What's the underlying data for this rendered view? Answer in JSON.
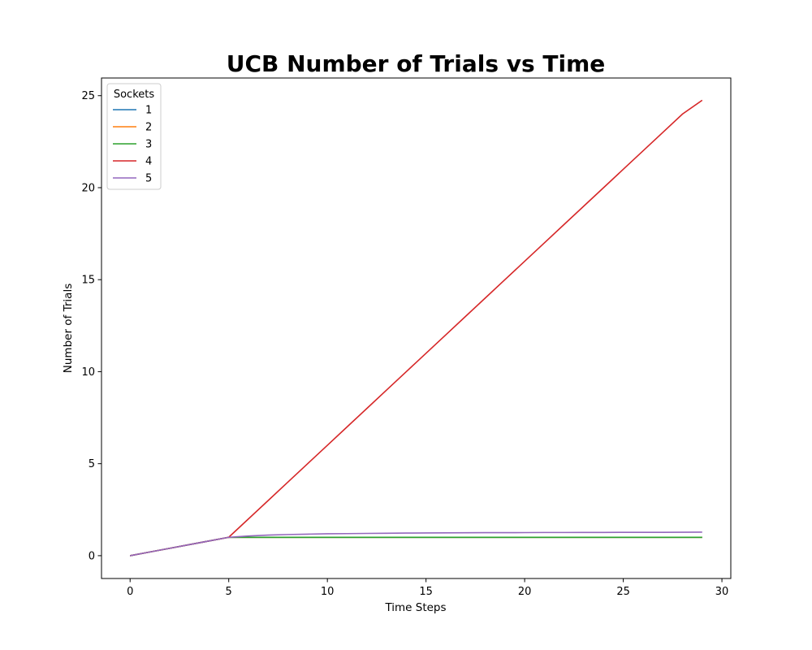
{
  "chart_data": {
    "type": "line",
    "title": "UCB Number of Trials vs Time",
    "xlabel": "Time Steps",
    "ylabel": "Number of Trials",
    "xlim": [
      -1.45,
      30.45
    ],
    "ylim": [
      -1.24,
      25.96
    ],
    "xticks": [
      0,
      5,
      10,
      15,
      20,
      25,
      30
    ],
    "yticks": [
      0,
      5,
      10,
      15,
      20,
      25
    ],
    "grid": false,
    "legend": {
      "title": "Sockets",
      "placement": "top-left"
    },
    "x": [
      0,
      1,
      2,
      3,
      4,
      5,
      6,
      7,
      8,
      9,
      10,
      11,
      12,
      13,
      14,
      15,
      16,
      17,
      18,
      19,
      20,
      21,
      22,
      23,
      24,
      25,
      26,
      27,
      28,
      29
    ],
    "series": [
      {
        "name": "1",
        "color": "#1f77b4",
        "values": [
          0,
          0.2,
          0.4,
          0.6,
          0.8,
          1,
          1,
          1,
          1,
          1,
          1,
          1,
          1,
          1,
          1,
          1,
          1,
          1,
          1,
          1,
          1,
          1,
          1,
          1,
          1,
          1,
          1,
          1,
          1,
          1
        ]
      },
      {
        "name": "2",
        "color": "#ff7f0e",
        "values": [
          0,
          0.2,
          0.4,
          0.6,
          0.8,
          1,
          1,
          1,
          1,
          1,
          1,
          1,
          1,
          1,
          1,
          1,
          1,
          1,
          1,
          1,
          1,
          1,
          1,
          1,
          1,
          1,
          1,
          1,
          1,
          1
        ]
      },
      {
        "name": "3",
        "color": "#2ca02c",
        "values": [
          0,
          0.2,
          0.4,
          0.6,
          0.8,
          1,
          1,
          1,
          1,
          1,
          1,
          1,
          1,
          1,
          1,
          1,
          1,
          1,
          1,
          1,
          1,
          1,
          1,
          1,
          1,
          1,
          1,
          1,
          1,
          1
        ]
      },
      {
        "name": "4",
        "color": "#d62728",
        "values": [
          0,
          0.2,
          0.4,
          0.6,
          0.8,
          1,
          2,
          3,
          4,
          5,
          6,
          7,
          8,
          9,
          10,
          11,
          12,
          13,
          14,
          15,
          16,
          17,
          18,
          19,
          20,
          21,
          22,
          23,
          24,
          24.75
        ]
      },
      {
        "name": "5",
        "color": "#9467bd",
        "values": [
          0,
          0.2,
          0.4,
          0.6,
          0.8,
          1,
          1.07,
          1.12,
          1.15,
          1.17,
          1.19,
          1.2,
          1.21,
          1.22,
          1.23,
          1.235,
          1.24,
          1.245,
          1.25,
          1.25,
          1.255,
          1.26,
          1.26,
          1.265,
          1.265,
          1.27,
          1.27,
          1.27,
          1.275,
          1.28
        ]
      }
    ]
  }
}
